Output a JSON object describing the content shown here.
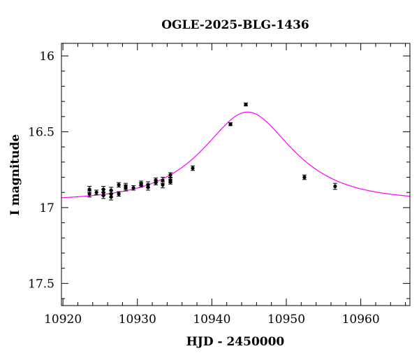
{
  "chart_data": {
    "type": "scatter",
    "title": "OGLE-2025-BLG-1436",
    "xlabel": "HJD - 2450000",
    "ylabel": "I magnitude",
    "xlim": [
      10919.8,
      10966.6
    ],
    "ylim": [
      17.646,
      15.917
    ],
    "y_inverted": true,
    "x_ticks": [
      10920,
      10930,
      10940,
      10950,
      10960
    ],
    "x_tick_labels": [
      "10920",
      "10930",
      "10940",
      "10950",
      "10960"
    ],
    "x_minor_step": 2,
    "y_ticks": [
      16,
      16.5,
      17,
      17.5
    ],
    "y_tick_labels": [
      "16",
      "16.5",
      "17",
      "17.5"
    ],
    "y_minor_step": 0.1,
    "grid": false,
    "points_color": "#000000",
    "model_color": "#ff00ff",
    "series": [
      {
        "name": "data",
        "x": [
          10923.56,
          10923.56,
          10924.5,
          10925.44,
          10925.44,
          10925.44,
          10926.47,
          10926.47,
          10926.47,
          10927.5,
          10927.5,
          10928.43,
          10928.43,
          10929.47,
          10930.5,
          10930.5,
          10931.43,
          10931.43,
          10932.47,
          10932.47,
          10933.4,
          10933.4,
          10934.43,
          10934.43,
          10934.43,
          10937.43,
          10942.5,
          10944.56,
          10952.43,
          10956.55
        ],
        "y": [
          16.88,
          16.91,
          16.9,
          16.88,
          16.9,
          16.92,
          16.886,
          16.91,
          16.93,
          16.85,
          16.91,
          16.86,
          16.87,
          16.87,
          16.84,
          16.85,
          16.85,
          16.865,
          16.82,
          16.835,
          16.82,
          16.85,
          16.785,
          16.82,
          16.83,
          16.74,
          16.45,
          16.32,
          16.8,
          16.86
        ],
        "err": [
          0.02,
          0.02,
          0.015,
          0.02,
          0.02,
          0.02,
          0.02,
          0.02,
          0.02,
          0.015,
          0.015,
          0.02,
          0.02,
          0.015,
          0.015,
          0.015,
          0.02,
          0.02,
          0.015,
          0.015,
          0.02,
          0.02,
          0.015,
          0.015,
          0.015,
          0.015,
          0.01,
          0.01,
          0.015,
          0.02
        ]
      },
      {
        "name": "model",
        "kind": "paczynski",
        "I0": 16.955,
        "t0": 10944.8,
        "tE": 8.8,
        "u0": 0.68
      }
    ]
  }
}
